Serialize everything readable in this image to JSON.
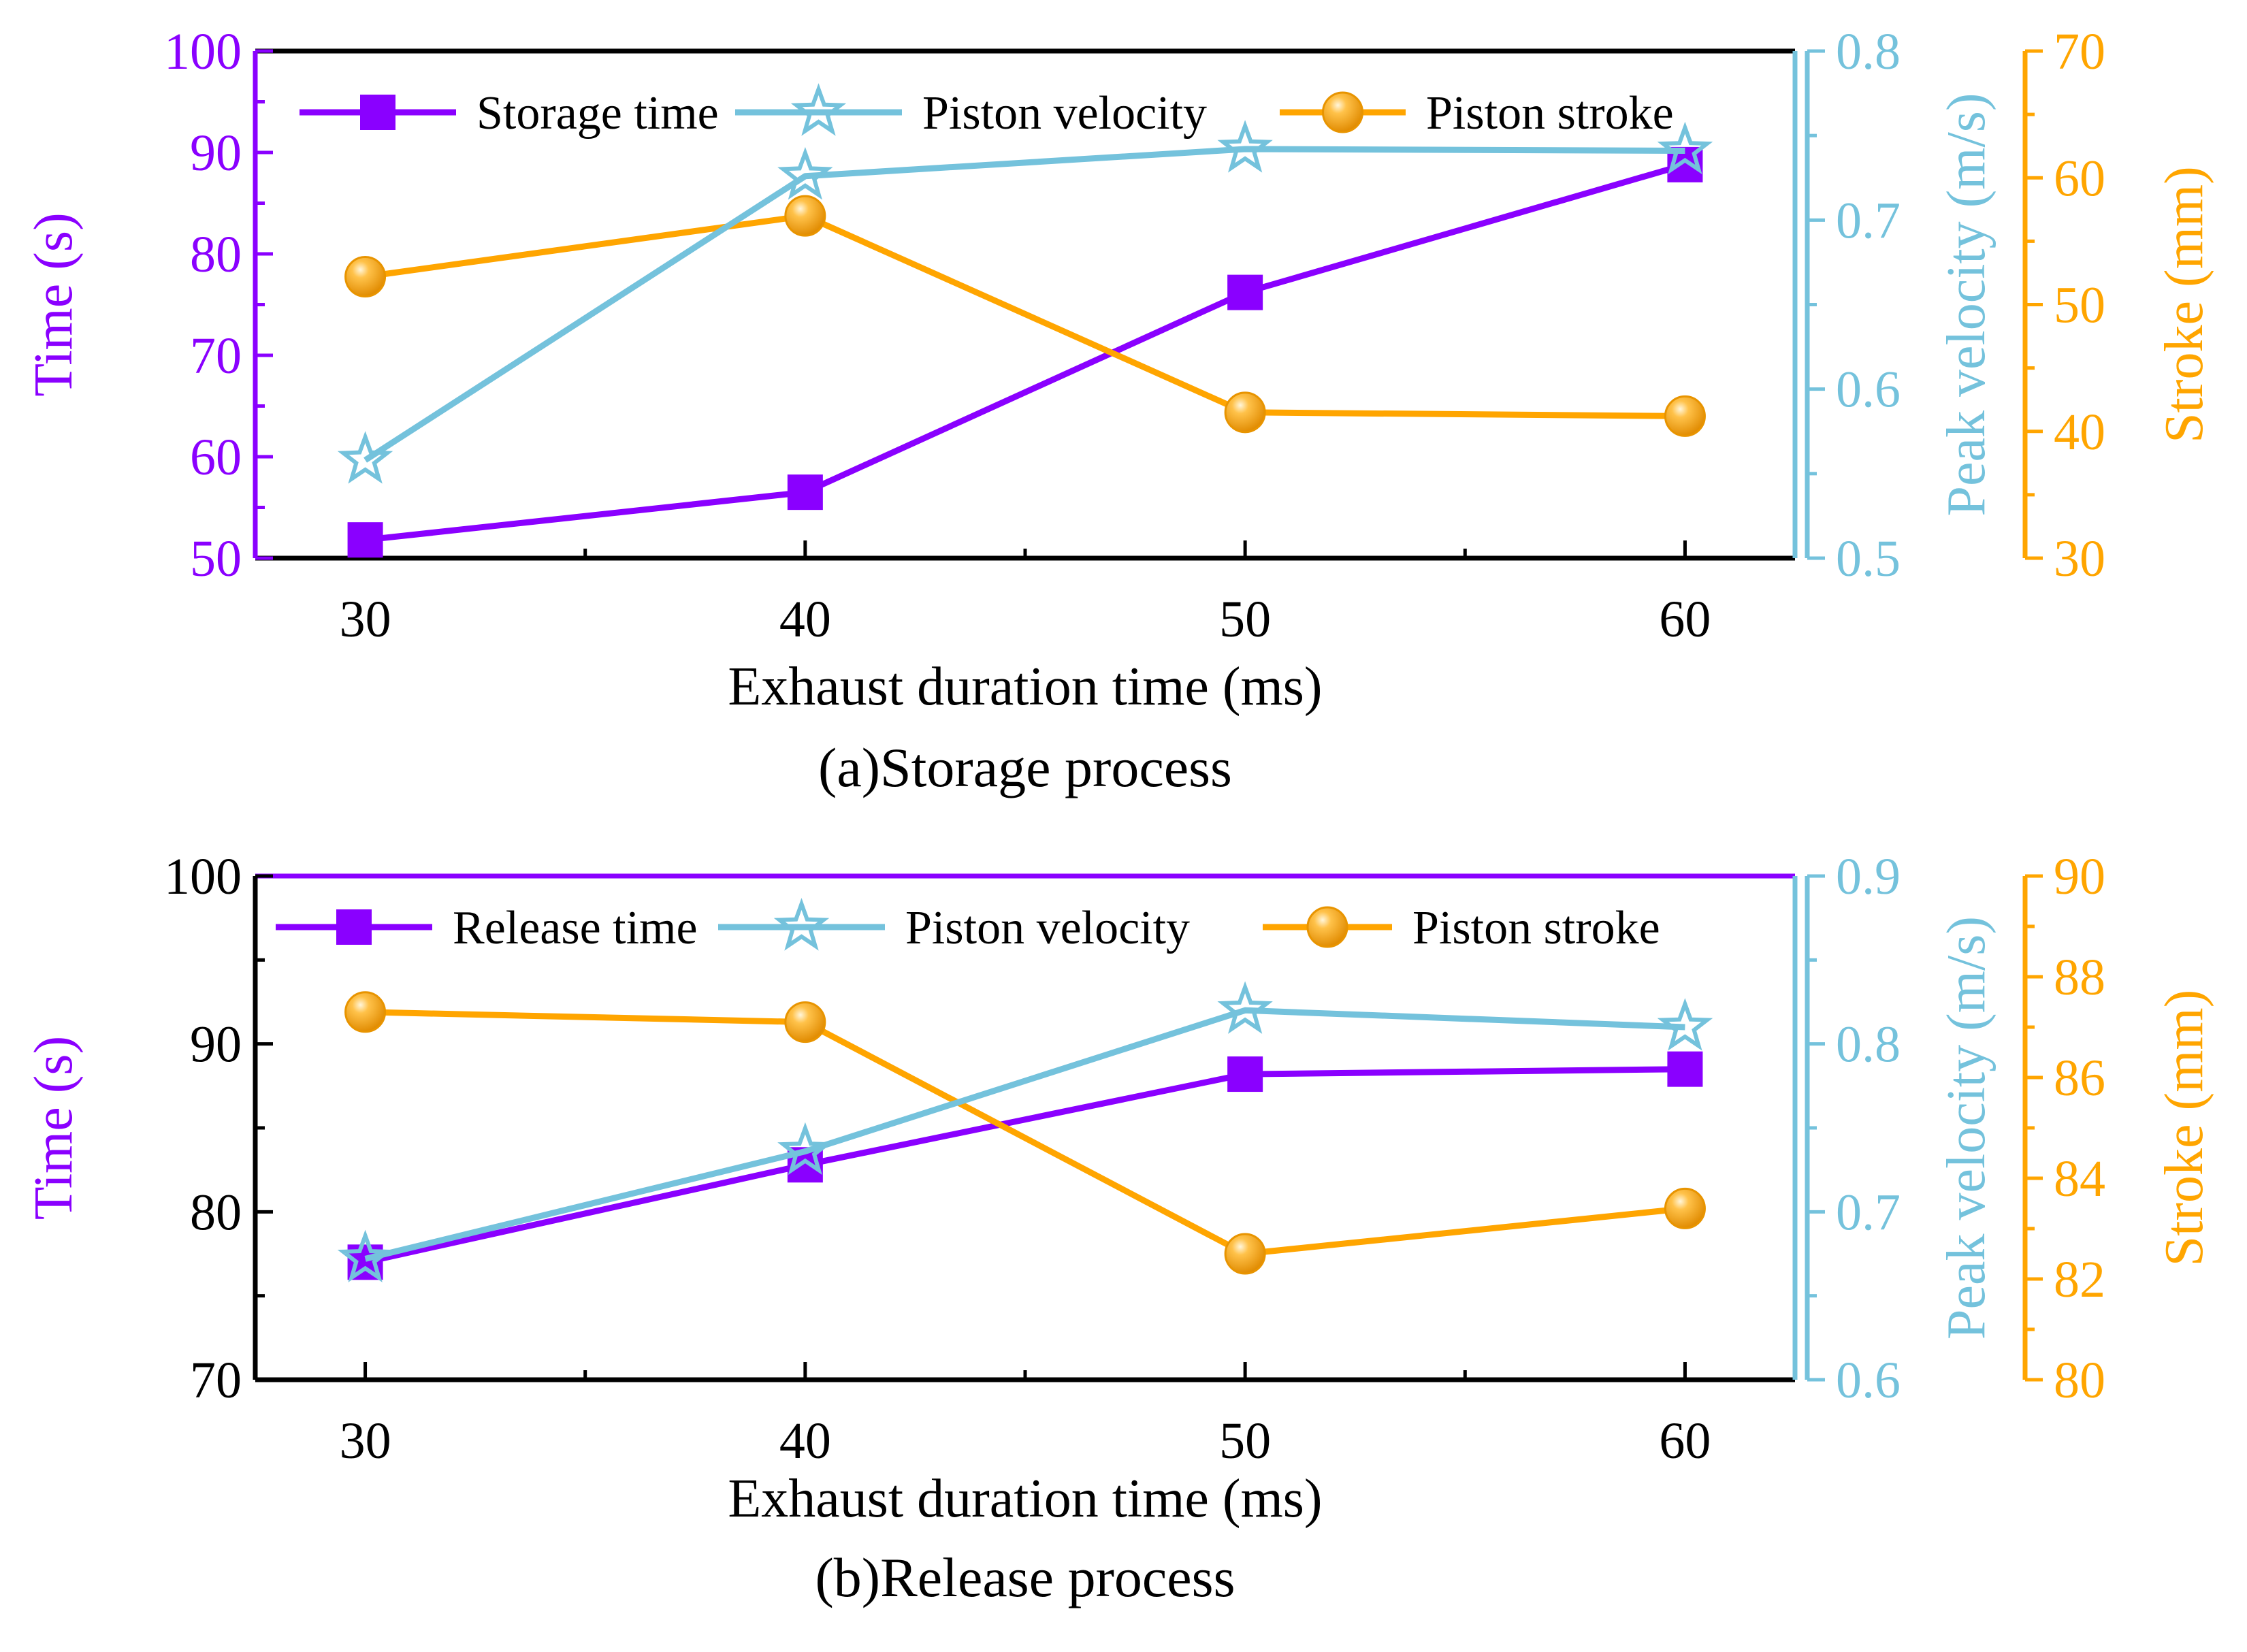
{
  "colors": {
    "time": "#8a00ff",
    "velocity": "#74c2dc",
    "stroke": "#ffa500",
    "axis": "#000000"
  },
  "chart_data": [
    {
      "type": "line",
      "caption": "(a)Storage process",
      "x": [
        30,
        40,
        50,
        60
      ],
      "xlabel": "Exhaust duration time (ms)",
      "xlim": [
        27.5,
        62.5
      ],
      "xticks": [
        30,
        40,
        50,
        60
      ],
      "xtick_labels": [
        "30",
        "40",
        "50",
        "60"
      ],
      "series": [
        {
          "name": "Storage time",
          "axis": "left",
          "marker": "square",
          "values": [
            51.8,
            56.5,
            76.2,
            88.8
          ]
        },
        {
          "name": "Piston velocity",
          "axis": "right1",
          "marker": "star",
          "values": [
            0.558,
            0.726,
            0.742,
            0.741
          ]
        },
        {
          "name": "Piston stroke",
          "axis": "right2",
          "marker": "circle",
          "values": [
            52.2,
            57.0,
            41.5,
            41.2
          ]
        }
      ],
      "axes": {
        "left": {
          "label": "Time (s)",
          "lim": [
            50,
            100
          ],
          "ticks": [
            50,
            60,
            70,
            80,
            90,
            100
          ],
          "tick_labels": [
            "50",
            "60",
            "70",
            "80",
            "90",
            "100"
          ],
          "color_key": "time"
        },
        "right1": {
          "label": "Peak velocity (m/s)",
          "lim": [
            0.5,
            0.8
          ],
          "ticks": [
            0.5,
            0.6,
            0.7,
            0.8
          ],
          "tick_labels": [
            "0.5",
            "0.6",
            "0.7",
            "0.8"
          ],
          "color_key": "velocity"
        },
        "right2": {
          "label": "Stroke (mm)",
          "lim": [
            30,
            70
          ],
          "ticks": [
            30,
            40,
            50,
            60,
            70
          ],
          "tick_labels": [
            "30",
            "40",
            "50",
            "60",
            "70"
          ],
          "color_key": "stroke"
        }
      },
      "legend": "top"
    },
    {
      "type": "line",
      "caption": "(b)Release process",
      "x": [
        30,
        40,
        50,
        60
      ],
      "xlabel": "Exhaust duration time (ms)",
      "xlim": [
        27.5,
        62.5
      ],
      "xticks": [
        30,
        40,
        50,
        60
      ],
      "xtick_labels": [
        "30",
        "40",
        "50",
        "60"
      ],
      "series": [
        {
          "name": "Release time",
          "axis": "left",
          "marker": "square",
          "values": [
            77.0,
            82.8,
            88.2,
            88.5
          ]
        },
        {
          "name": "Piston velocity",
          "axis": "right1",
          "marker": "star",
          "values": [
            0.672,
            0.736,
            0.82,
            0.81
          ]
        },
        {
          "name": "Piston stroke",
          "axis": "right2",
          "marker": "circle",
          "values": [
            87.3,
            87.1,
            82.5,
            83.4
          ]
        }
      ],
      "axes": {
        "left": {
          "label": "Time (s)",
          "lim": [
            70,
            100
          ],
          "ticks": [
            70,
            80,
            90,
            100
          ],
          "tick_labels": [
            "70",
            "80",
            "90",
            "100"
          ],
          "color_key": "time"
        },
        "right1": {
          "label": "Peak velocity (m/s)",
          "lim": [
            0.6,
            0.9
          ],
          "ticks": [
            0.6,
            0.7,
            0.8,
            0.9
          ],
          "tick_labels": [
            "0.6",
            "0.7",
            "0.8",
            "0.9"
          ],
          "color_key": "velocity"
        },
        "right2": {
          "label": "Stroke (mm)",
          "lim": [
            80,
            90
          ],
          "ticks": [
            80,
            82,
            84,
            86,
            88,
            90
          ],
          "tick_labels": [
            "80",
            "82",
            "84",
            "86",
            "88",
            "90"
          ],
          "color_key": "stroke"
        }
      },
      "legend": "top"
    }
  ]
}
